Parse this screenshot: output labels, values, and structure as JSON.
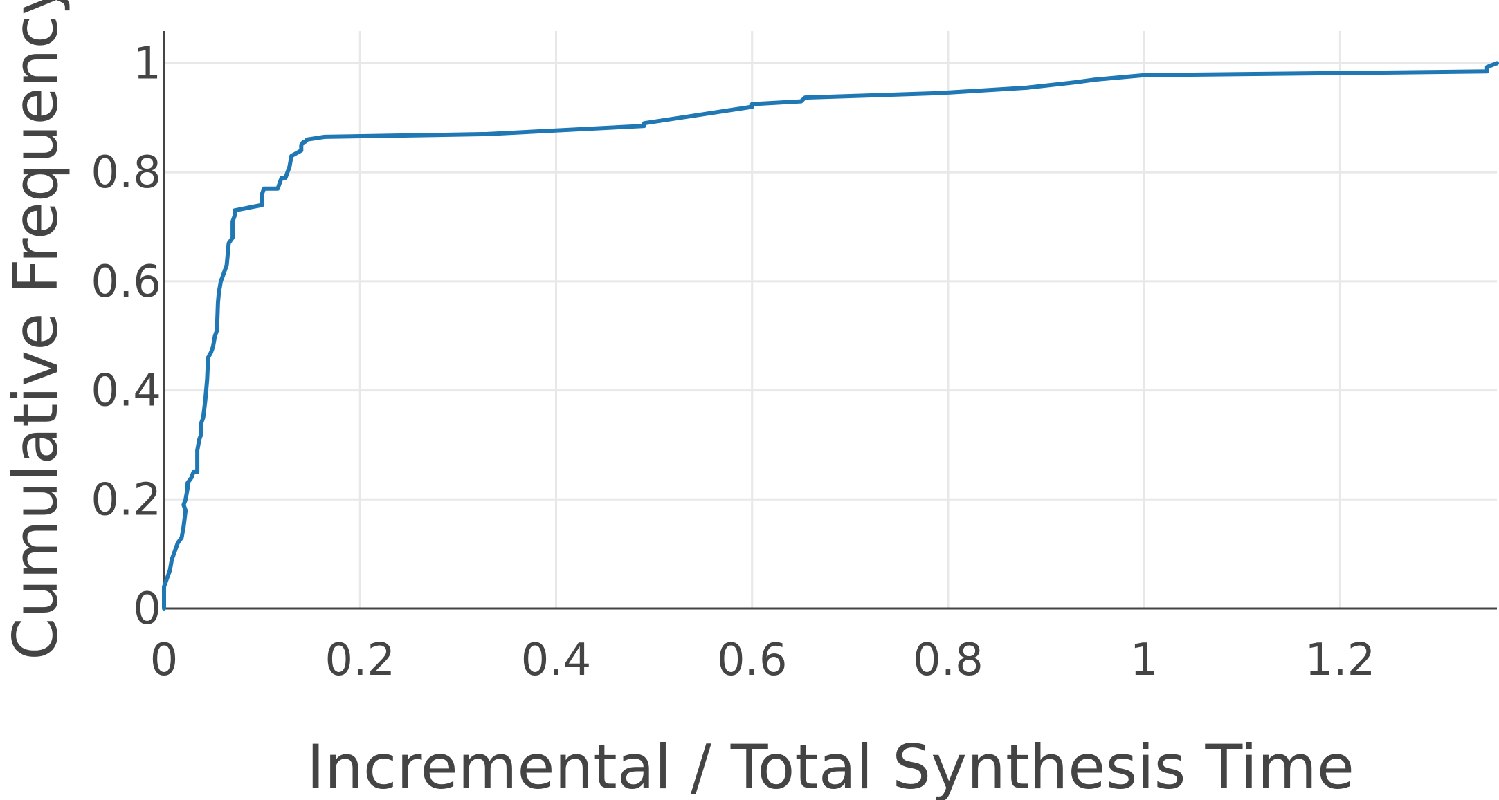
{
  "chart_data": {
    "type": "line",
    "title": "",
    "xlabel": "Incremental / Total Synthesis Time",
    "ylabel": "Cumulative Frequency",
    "xlim": [
      0,
      1.36
    ],
    "ylim": [
      0,
      1.05
    ],
    "x_ticks": [
      {
        "value": 0,
        "label": "0"
      },
      {
        "value": 0.2,
        "label": "0.2"
      },
      {
        "value": 0.4,
        "label": "0.4"
      },
      {
        "value": 0.6,
        "label": "0.6"
      },
      {
        "value": 0.8,
        "label": "0.8"
      },
      {
        "value": 1,
        "label": "1"
      },
      {
        "value": 1.2,
        "label": "1.2"
      }
    ],
    "y_ticks": [
      {
        "value": 0,
        "label": "0"
      },
      {
        "value": 0.2,
        "label": "0.2"
      },
      {
        "value": 0.4,
        "label": "0.4"
      },
      {
        "value": 0.6,
        "label": "0.6"
      },
      {
        "value": 0.8,
        "label": "0.8"
      },
      {
        "value": 1,
        "label": "1"
      }
    ],
    "grid": true,
    "series": [
      {
        "color": "#1f77b4",
        "x": [
          0.0,
          0.0,
          0.002,
          0.004,
          0.006,
          0.008,
          0.01,
          0.012,
          0.014,
          0.018,
          0.02,
          0.022,
          0.02,
          0.022,
          0.024,
          0.024,
          0.028,
          0.03,
          0.034,
          0.034,
          0.036,
          0.038,
          0.038,
          0.04,
          0.042,
          0.044,
          0.045,
          0.048,
          0.05,
          0.052,
          0.054,
          0.055,
          0.056,
          0.058,
          0.06,
          0.062,
          0.064,
          0.066,
          0.07,
          0.07,
          0.072,
          0.072,
          0.1,
          0.1,
          0.102,
          0.116,
          0.118,
          0.12,
          0.124,
          0.126,
          0.128,
          0.13,
          0.14,
          0.14,
          0.142,
          0.144,
          0.146,
          0.164,
          0.33,
          0.49,
          0.49,
          0.6,
          0.6,
          0.65,
          0.654,
          0.79,
          0.88,
          0.93,
          0.95,
          1.0,
          1.35,
          1.35,
          1.36
        ],
        "y": [
          0.0,
          0.04,
          0.05,
          0.06,
          0.07,
          0.09,
          0.1,
          0.11,
          0.12,
          0.13,
          0.15,
          0.18,
          0.19,
          0.2,
          0.22,
          0.23,
          0.24,
          0.25,
          0.25,
          0.29,
          0.31,
          0.32,
          0.34,
          0.35,
          0.38,
          0.42,
          0.46,
          0.47,
          0.48,
          0.5,
          0.51,
          0.56,
          0.58,
          0.6,
          0.61,
          0.62,
          0.63,
          0.67,
          0.68,
          0.71,
          0.72,
          0.73,
          0.74,
          0.76,
          0.77,
          0.77,
          0.78,
          0.79,
          0.79,
          0.8,
          0.81,
          0.83,
          0.84,
          0.85,
          0.855,
          0.856,
          0.86,
          0.865,
          0.87,
          0.885,
          0.89,
          0.92,
          0.925,
          0.93,
          0.937,
          0.945,
          0.955,
          0.965,
          0.97,
          0.978,
          0.985,
          0.993,
          1.0
        ]
      }
    ]
  }
}
